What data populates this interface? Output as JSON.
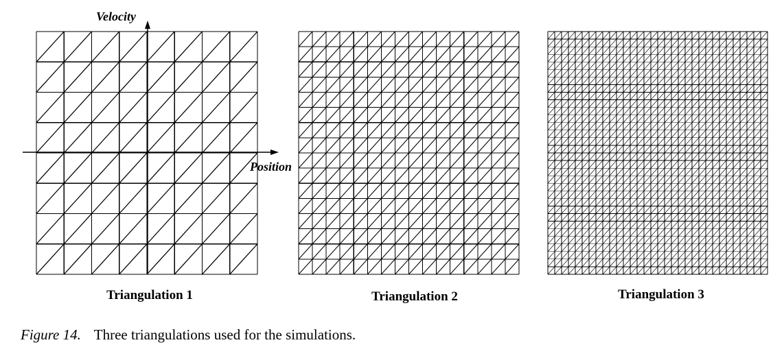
{
  "colors": {
    "ink": "#000000",
    "paper": "#ffffff"
  },
  "panels": [
    {
      "title": "Triangulation 1",
      "divisions": 8,
      "has_axes": true
    },
    {
      "title": "Triangulation 2",
      "divisions": 16,
      "has_axes": false
    },
    {
      "title": "Triangulation 3",
      "divisions": 32,
      "has_axes": false
    }
  ],
  "axes": {
    "y_title": "Velocity",
    "x_title": "Position"
  },
  "caption": {
    "figure_label": "Figure 14.",
    "text": "Three triangulations used for the simulations."
  }
}
